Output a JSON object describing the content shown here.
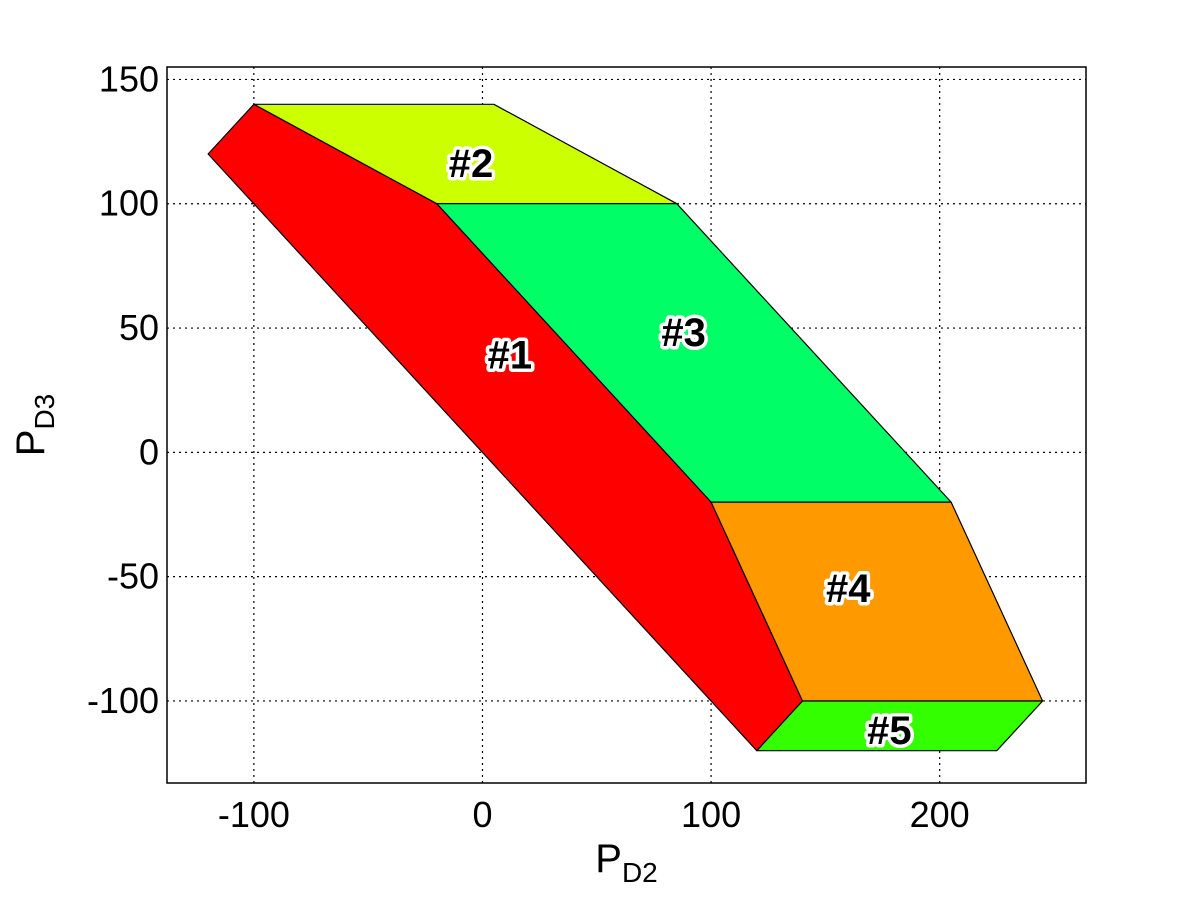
{
  "chart_data": {
    "type": "area",
    "title": "",
    "xlabel": {
      "main": "P",
      "sub": "D2"
    },
    "ylabel": {
      "main": "P",
      "sub": "D3"
    },
    "xlim": [
      -138,
      264
    ],
    "ylim": [
      -133,
      155
    ],
    "xticks": [
      -100,
      0,
      100,
      200
    ],
    "yticks": [
      150,
      100,
      50,
      0,
      -50,
      -100
    ],
    "grid": true,
    "regions": [
      {
        "label": "#1",
        "color": "#ff0000",
        "vertices": [
          [
            -120,
            120
          ],
          [
            -100,
            140
          ],
          [
            -20,
            100
          ],
          [
            100,
            -20
          ],
          [
            140,
            -100
          ],
          [
            120,
            -120
          ]
        ],
        "label_pos": [
          12,
          38
        ]
      },
      {
        "label": "#2",
        "color": "#ccff00",
        "vertices": [
          [
            -100,
            140
          ],
          [
            5,
            140
          ],
          [
            85,
            100
          ],
          [
            -20,
            100
          ]
        ],
        "label_pos": [
          -5,
          115
        ]
      },
      {
        "label": "#3",
        "color": "#00ff66",
        "vertices": [
          [
            -20,
            100
          ],
          [
            85,
            100
          ],
          [
            205,
            -20
          ],
          [
            100,
            -20
          ]
        ],
        "label_pos": [
          88,
          47
        ]
      },
      {
        "label": "#4",
        "color": "#ff9900",
        "vertices": [
          [
            100,
            -20
          ],
          [
            205,
            -20
          ],
          [
            245,
            -100
          ],
          [
            140,
            -100
          ]
        ],
        "label_pos": [
          160,
          -56
        ]
      },
      {
        "label": "#5",
        "color": "#33ff00",
        "vertices": [
          [
            140,
            -100
          ],
          [
            245,
            -100
          ],
          [
            225,
            -120
          ],
          [
            120,
            -120
          ]
        ],
        "label_pos": [
          178,
          -113
        ]
      }
    ]
  }
}
